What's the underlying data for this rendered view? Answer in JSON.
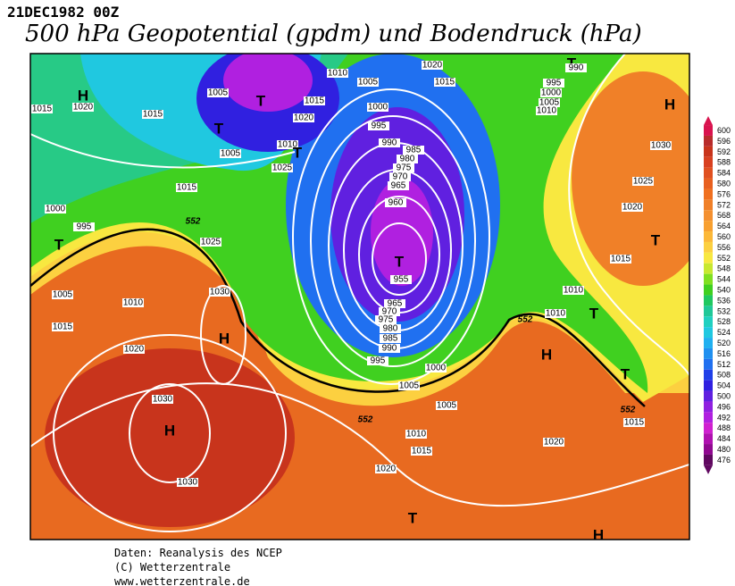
{
  "header": {
    "date": "21DEC1982 00Z",
    "title": "500 hPa Geopotential (gpdm) und Bodendruck (hPa)"
  },
  "colorbar": {
    "levels": [
      600,
      596,
      592,
      588,
      584,
      580,
      576,
      572,
      568,
      564,
      560,
      556,
      552,
      548,
      544,
      540,
      536,
      532,
      528,
      524,
      520,
      516,
      512,
      508,
      504,
      500,
      496,
      492,
      488,
      484,
      480,
      476
    ],
    "colors": [
      "#d9134e",
      "#b82c2c",
      "#c8341c",
      "#d84020",
      "#e05020",
      "#e86020",
      "#f07020",
      "#f08028",
      "#f49030",
      "#f8a030",
      "#fcb838",
      "#fcd040",
      "#f8e840",
      "#c8e830",
      "#80e020",
      "#40d020",
      "#20c860",
      "#20c898",
      "#20d0c0",
      "#20c8e0",
      "#20b0f0",
      "#2090f0",
      "#2070f0",
      "#2040e8",
      "#3020e0",
      "#6020e0",
      "#9020e0",
      "#b020e0",
      "#d020d0",
      "#b010b0",
      "#900890",
      "#600860"
    ]
  },
  "map": {
    "labels": [
      "H",
      "1020",
      "1015",
      "1015",
      "1005",
      "T",
      "T",
      "1015",
      "1020",
      "1005",
      "1010",
      "T",
      "1025",
      "1010",
      "1005",
      "1020",
      "1015",
      "T",
      "990",
      "995",
      "1000",
      "1005",
      "1010",
      "H",
      "1000",
      "995",
      "990",
      "985",
      "980",
      "975",
      "970",
      "965",
      "960",
      "T",
      "955",
      "965",
      "970",
      "975",
      "980",
      "985",
      "990",
      "995",
      "1000",
      "1005",
      "1005",
      "1010",
      "1015",
      "1020",
      "1020",
      "1030",
      "1025",
      "1020",
      "T",
      "1015",
      "1010",
      "1010",
      "T",
      "H",
      "T",
      "1015",
      "552",
      "552",
      "552",
      "552",
      "1000",
      "995",
      "T",
      "1015",
      "1025",
      "1030",
      "H",
      "1010",
      "1005",
      "1015",
      "1020",
      "1030",
      "H",
      "1030",
      "T",
      "H"
    ]
  },
  "footer": {
    "lines": [
      "Daten: Reanalysis des NCEP",
      "(C) Wetterzentrale",
      "www.wetterzentrale.de"
    ]
  }
}
